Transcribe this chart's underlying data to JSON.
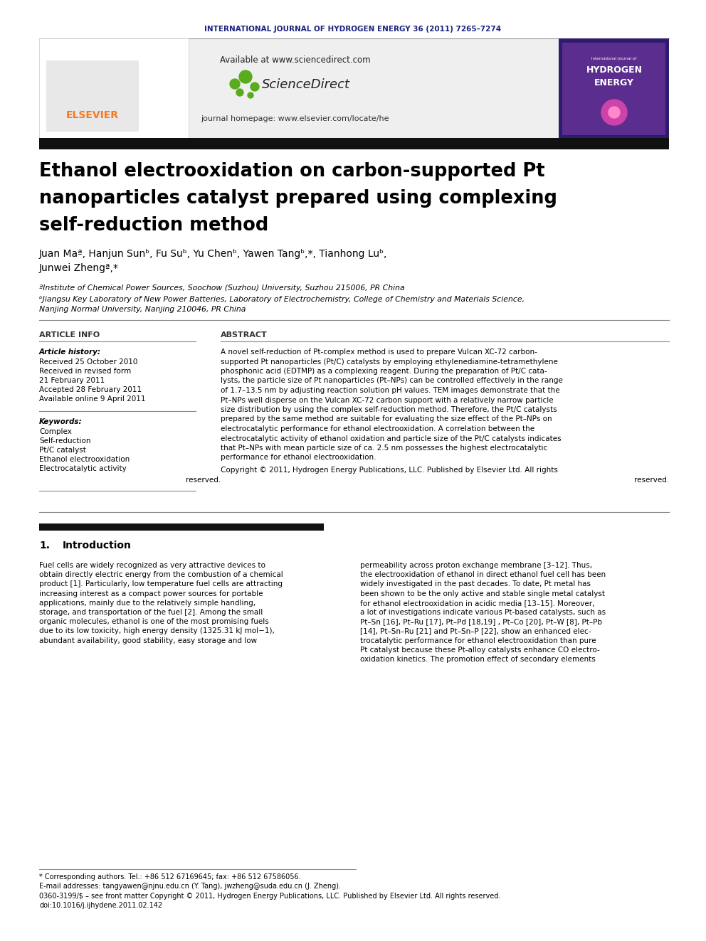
{
  "page_width": 9.92,
  "page_height": 13.23,
  "bg_color": "#ffffff",
  "journal_header": "INTERNATIONAL JOURNAL OF HYDROGEN ENERGY 36 (2011) 7265–7274",
  "journal_header_color": "#1a237e",
  "available_text": "Available at www.sciencedirect.com",
  "journal_homepage": "journal homepage: www.elsevier.com/locate/he",
  "title_line1": "Ethanol electrooxidation on carbon-supported Pt",
  "title_line2": "nanoparticles catalyst prepared using complexing",
  "title_line3": "self-reduction method",
  "authors_line1": "Juan Maª, Hanjun Sunᵇ, Fu Suᵇ, Yu Chenᵇ, Yawen Tangᵇ,*, Tianhong Luᵇ,",
  "authors_line2": "Junwei Zhengª,*",
  "affil_a": "ªInstitute of Chemical Power Sources, Soochow (Suzhou) University, Suzhou 215006, PR China",
  "affil_b1": "ᵇJiangsu Key Laboratory of New Power Batteries, Laboratory of Electrochemistry, College of Chemistry and Materials Science,",
  "affil_b2": "Nanjing Normal University, Nanjing 210046, PR China",
  "article_info_label": "ARTICLE INFO",
  "abstract_label": "ABSTRACT",
  "article_history_label": "Article history:",
  "received1": "Received 25 October 2010",
  "received2": "Received in revised form",
  "received2b": "21 February 2011",
  "accepted": "Accepted 28 February 2011",
  "available_online": "Available online 9 April 2011",
  "keywords_label": "Keywords:",
  "keywords": [
    "Complex",
    "Self-reduction",
    "Pt/C catalyst",
    "Ethanol electrooxidation",
    "Electrocatalytic activity"
  ],
  "abstract_lines": [
    "A novel self-reduction of Pt-complex method is used to prepare Vulcan XC-72 carbon-",
    "supported Pt nanoparticles (Pt/C) catalysts by employing ethylenediamine-tetramethylene",
    "phosphonic acid (EDTMP) as a complexing reagent. During the preparation of Pt/C cata-",
    "lysts, the particle size of Pt nanoparticles (Pt–NPs) can be controlled effectively in the range",
    "of 1.7–13.5 nm by adjusting reaction solution pH values. TEM images demonstrate that the",
    "Pt–NPs well disperse on the Vulcan XC-72 carbon support with a relatively narrow particle",
    "size distribution by using the complex self-reduction method. Therefore, the Pt/C catalysts",
    "prepared by the same method are suitable for evaluating the size effect of the Pt–NPs on",
    "electrocatalytic performance for ethanol electrooxidation. A correlation between the",
    "electrocatalytic activity of ethanol oxidation and particle size of the Pt/C catalysts indicates",
    "that Pt–NPs with mean particle size of ca. 2.5 nm possesses the highest electrocatalytic",
    "performance for ethanol electrooxidation."
  ],
  "copyright_line1": "Copyright © 2011, Hydrogen Energy Publications, LLC. Published by Elsevier Ltd. All rights",
  "copyright_line2": "reserved.",
  "section1_num": "1.",
  "section1_title": "Introduction",
  "intro_col1_lines": [
    "Fuel cells are widely recognized as very attractive devices to",
    "obtain directly electric energy from the combustion of a chemical",
    "product [1]. Particularly, low temperature fuel cells are attracting",
    "increasing interest as a compact power sources for portable",
    "applications, mainly due to the relatively simple handling,",
    "storage, and transportation of the fuel [2]. Among the small",
    "organic molecules, ethanol is one of the most promising fuels",
    "due to its low toxicity, high energy density (1325.31 kJ mol−1),",
    "abundant availability, good stability, easy storage and low"
  ],
  "intro_col2_lines": [
    "permeability across proton exchange membrane [3–12]. Thus,",
    "the electrooxidation of ethanol in direct ethanol fuel cell has been",
    "widely investigated in the past decades. To date, Pt metal has",
    "been shown to be the only active and stable single metal catalyst",
    "for ethanol electrooxidation in acidic media [13–15]. Moreover,",
    "a lot of investigations indicate various Pt-based catalysts, such as",
    "Pt–Sn [16], Pt–Ru [17], Pt–Pd [18,19] , Pt–Co [20], Pt–W [8], Pt–Pb",
    "[14], Pt–Sn–Ru [21] and Pt–Sn–P [22], show an enhanced elec-",
    "trocatalytic performance for ethanol electrooxidation than pure",
    "Pt catalyst because these Pt-alloy catalysts enhance CO electro-",
    "oxidation kinetics. The promotion effect of secondary elements"
  ],
  "footer_corresponding": "* Corresponding authors. Tel.: +86 512 67169645; fax: +86 512 67586056.",
  "footer_email": "E-mail addresses: tangyawen@njnu.edu.cn (Y. Tang), jwzheng@suda.edu.cn (J. Zheng).",
  "footer_issn": "0360-3199/$ – see front matter Copyright © 2011, Hydrogen Energy Publications, LLC. Published by Elsevier Ltd. All rights reserved.",
  "footer_doi": "doi:10.1016/j.ijhydene.2011.02.142",
  "elsevier_color": "#f47920",
  "sciencedirect_green": "#5aab1e",
  "header_bg": "#efefef",
  "black_bar_color": "#111111",
  "link_color": "#1565c0",
  "dark_blue": "#1a237e"
}
